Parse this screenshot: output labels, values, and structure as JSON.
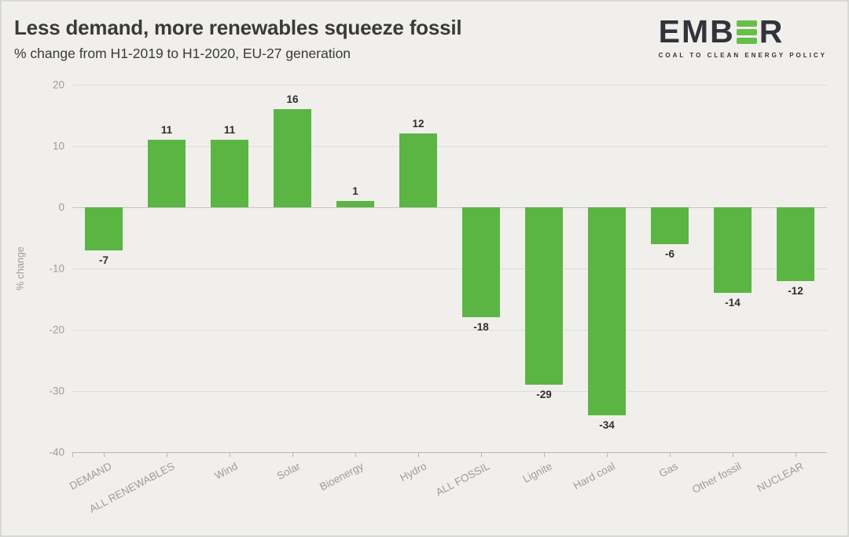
{
  "header": {
    "title": "Less demand, more renewables squeeze fossil",
    "subtitle": "% change from H1-2019 to H1-2020, EU-27 generation"
  },
  "logo": {
    "text_start": "EMB",
    "text_end": "R",
    "green_e_icon": "three-green-bars-icon",
    "tagline": "COAL TO CLEAN ENERGY POLICY",
    "dark_color": "#34333b",
    "green_color": "#67bf4a"
  },
  "chart_data": {
    "type": "bar",
    "title": "Less demand, more renewables squeeze fossil",
    "subtitle": "% change from H1-2019 to H1-2020, EU-27 generation",
    "categories": [
      "DEMAND",
      "ALL RENEWABLES",
      "Wind",
      "Solar",
      "Bioenergy",
      "Hydro",
      "ALL FOSSIL",
      "Lignite",
      "Hard coal",
      "Gas",
      "Other fossil",
      "NUCLEAR"
    ],
    "values": [
      -7,
      11,
      11,
      16,
      1,
      12,
      -18,
      -29,
      -34,
      -6,
      -14,
      -12
    ],
    "xlabel": "",
    "ylabel": "% change",
    "ylim": [
      -40,
      20
    ],
    "yticks": [
      20,
      10,
      0,
      -10,
      -20,
      -30,
      -40
    ],
    "grid": true,
    "legend": false,
    "bar_color": "#5bb543",
    "background_color": "#f0efec"
  }
}
